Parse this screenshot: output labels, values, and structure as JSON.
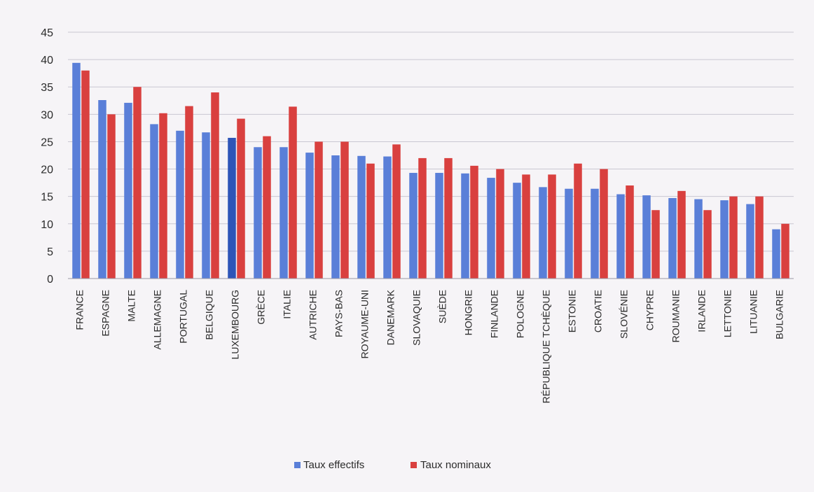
{
  "colors": {
    "effectifs": "#5a7fd8",
    "effectifs_highlight": "#2d55b8",
    "nominaux": "#d9403f",
    "grid": "#c9c7d2",
    "axis": "#9a98a6",
    "text": "#2b2b2b",
    "background": "#f6f4f7"
  },
  "chart_data": {
    "type": "bar",
    "title": "",
    "xlabel": "",
    "ylabel": "",
    "ylim": [
      0,
      45
    ],
    "yticks": [
      0,
      5,
      10,
      15,
      20,
      25,
      30,
      35,
      40,
      45
    ],
    "grid": true,
    "legend_position": "bottom-center",
    "highlighted_category": "LUXEMBOURG",
    "categories": [
      "FRANCE",
      "ESPAGNE",
      "MALTE",
      "ALLEMAGNE",
      "PORTUGAL",
      "BELGIQUE",
      "LUXEMBOURG",
      "GRÈCE",
      "ITALIE",
      "AUTRICHE",
      "PAYS-BAS",
      "ROYAUME-UNI",
      "DANEMARK",
      "SLOVAQUIE",
      "SUÈDE",
      "HONGRIE",
      "FINLANDE",
      "POLOGNE",
      "RÉPUBLIQUE TCHÈQUE",
      "ESTONIE",
      "CROATIE",
      "SLOVÉNIE",
      "CHYPRE",
      "ROUMANIE",
      "IRLANDE",
      "LETTONIE",
      "LITUANIE",
      "BULGARIE"
    ],
    "series": [
      {
        "name": "Taux effectifs",
        "values": [
          39.4,
          32.6,
          32.1,
          28.2,
          27.0,
          26.7,
          25.7,
          24.0,
          24.0,
          23.0,
          22.5,
          22.4,
          22.3,
          19.3,
          19.3,
          19.2,
          18.4,
          17.5,
          16.7,
          16.4,
          16.4,
          15.4,
          15.2,
          14.7,
          14.5,
          14.3,
          13.6,
          9.0
        ]
      },
      {
        "name": "Taux nominaux",
        "values": [
          38.0,
          30.0,
          35.0,
          30.2,
          31.5,
          34.0,
          29.2,
          26.0,
          31.4,
          25.0,
          25.0,
          21.0,
          24.5,
          22.0,
          22.0,
          20.6,
          20.0,
          19.0,
          19.0,
          21.0,
          20.0,
          17.0,
          12.5,
          16.0,
          12.5,
          15.0,
          15.0,
          10.0
        ]
      }
    ]
  }
}
